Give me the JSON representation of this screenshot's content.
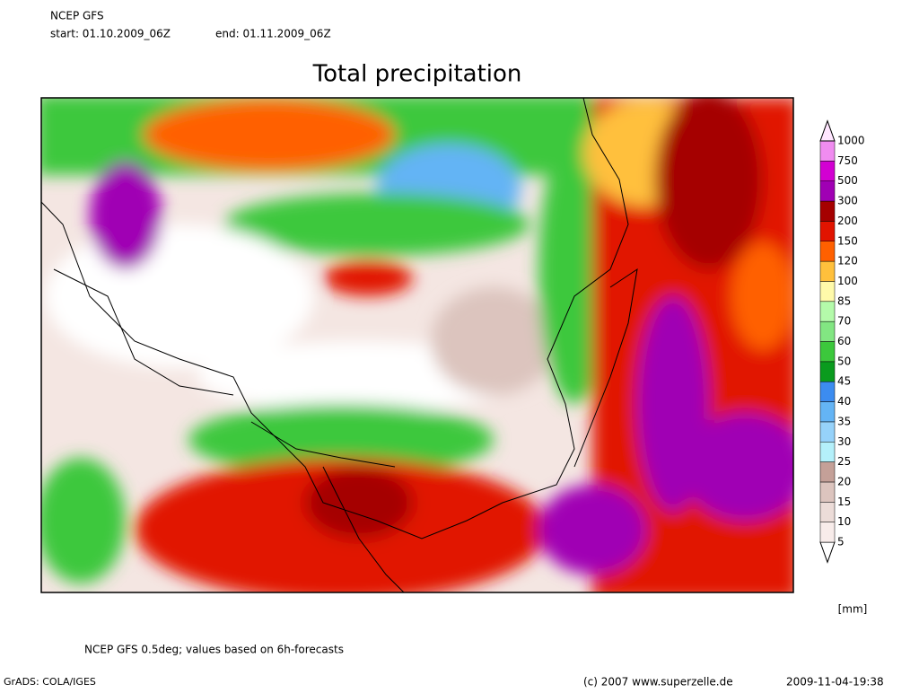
{
  "header": {
    "model": "NCEP GFS",
    "start": "start: 01.10.2009_06Z",
    "end": "end: 01.11.2009_06Z"
  },
  "title": "Total precipitation",
  "colorbar": {
    "levels": [
      5,
      10,
      15,
      20,
      25,
      30,
      35,
      40,
      45,
      50,
      60,
      70,
      85,
      100,
      120,
      150,
      200,
      300,
      500,
      750,
      1000
    ],
    "colors": [
      "#ffffff",
      "#f8ecea",
      "#ecdcd8",
      "#dcc4be",
      "#c4a098",
      "#b4f0fa",
      "#96d2fa",
      "#64b4f5",
      "#3c8cf0",
      "#0a9b1e",
      "#3cc83c",
      "#82e682",
      "#b4faaa",
      "#fffaaa",
      "#ffc03c",
      "#ff6000",
      "#e11400",
      "#a50000",
      "#a000b4",
      "#d200d2",
      "#f08cf0",
      "#ffe6ff"
    ],
    "unit": "[mm]"
  },
  "footer": {
    "note": "NCEP GFS 0.5deg; values based on 6h-forecasts",
    "software": "GrADS: COLA/IGES",
    "copyright": "(c) 2007 www.superzelle.de",
    "timestamp": "2009-11-04-19:38"
  }
}
